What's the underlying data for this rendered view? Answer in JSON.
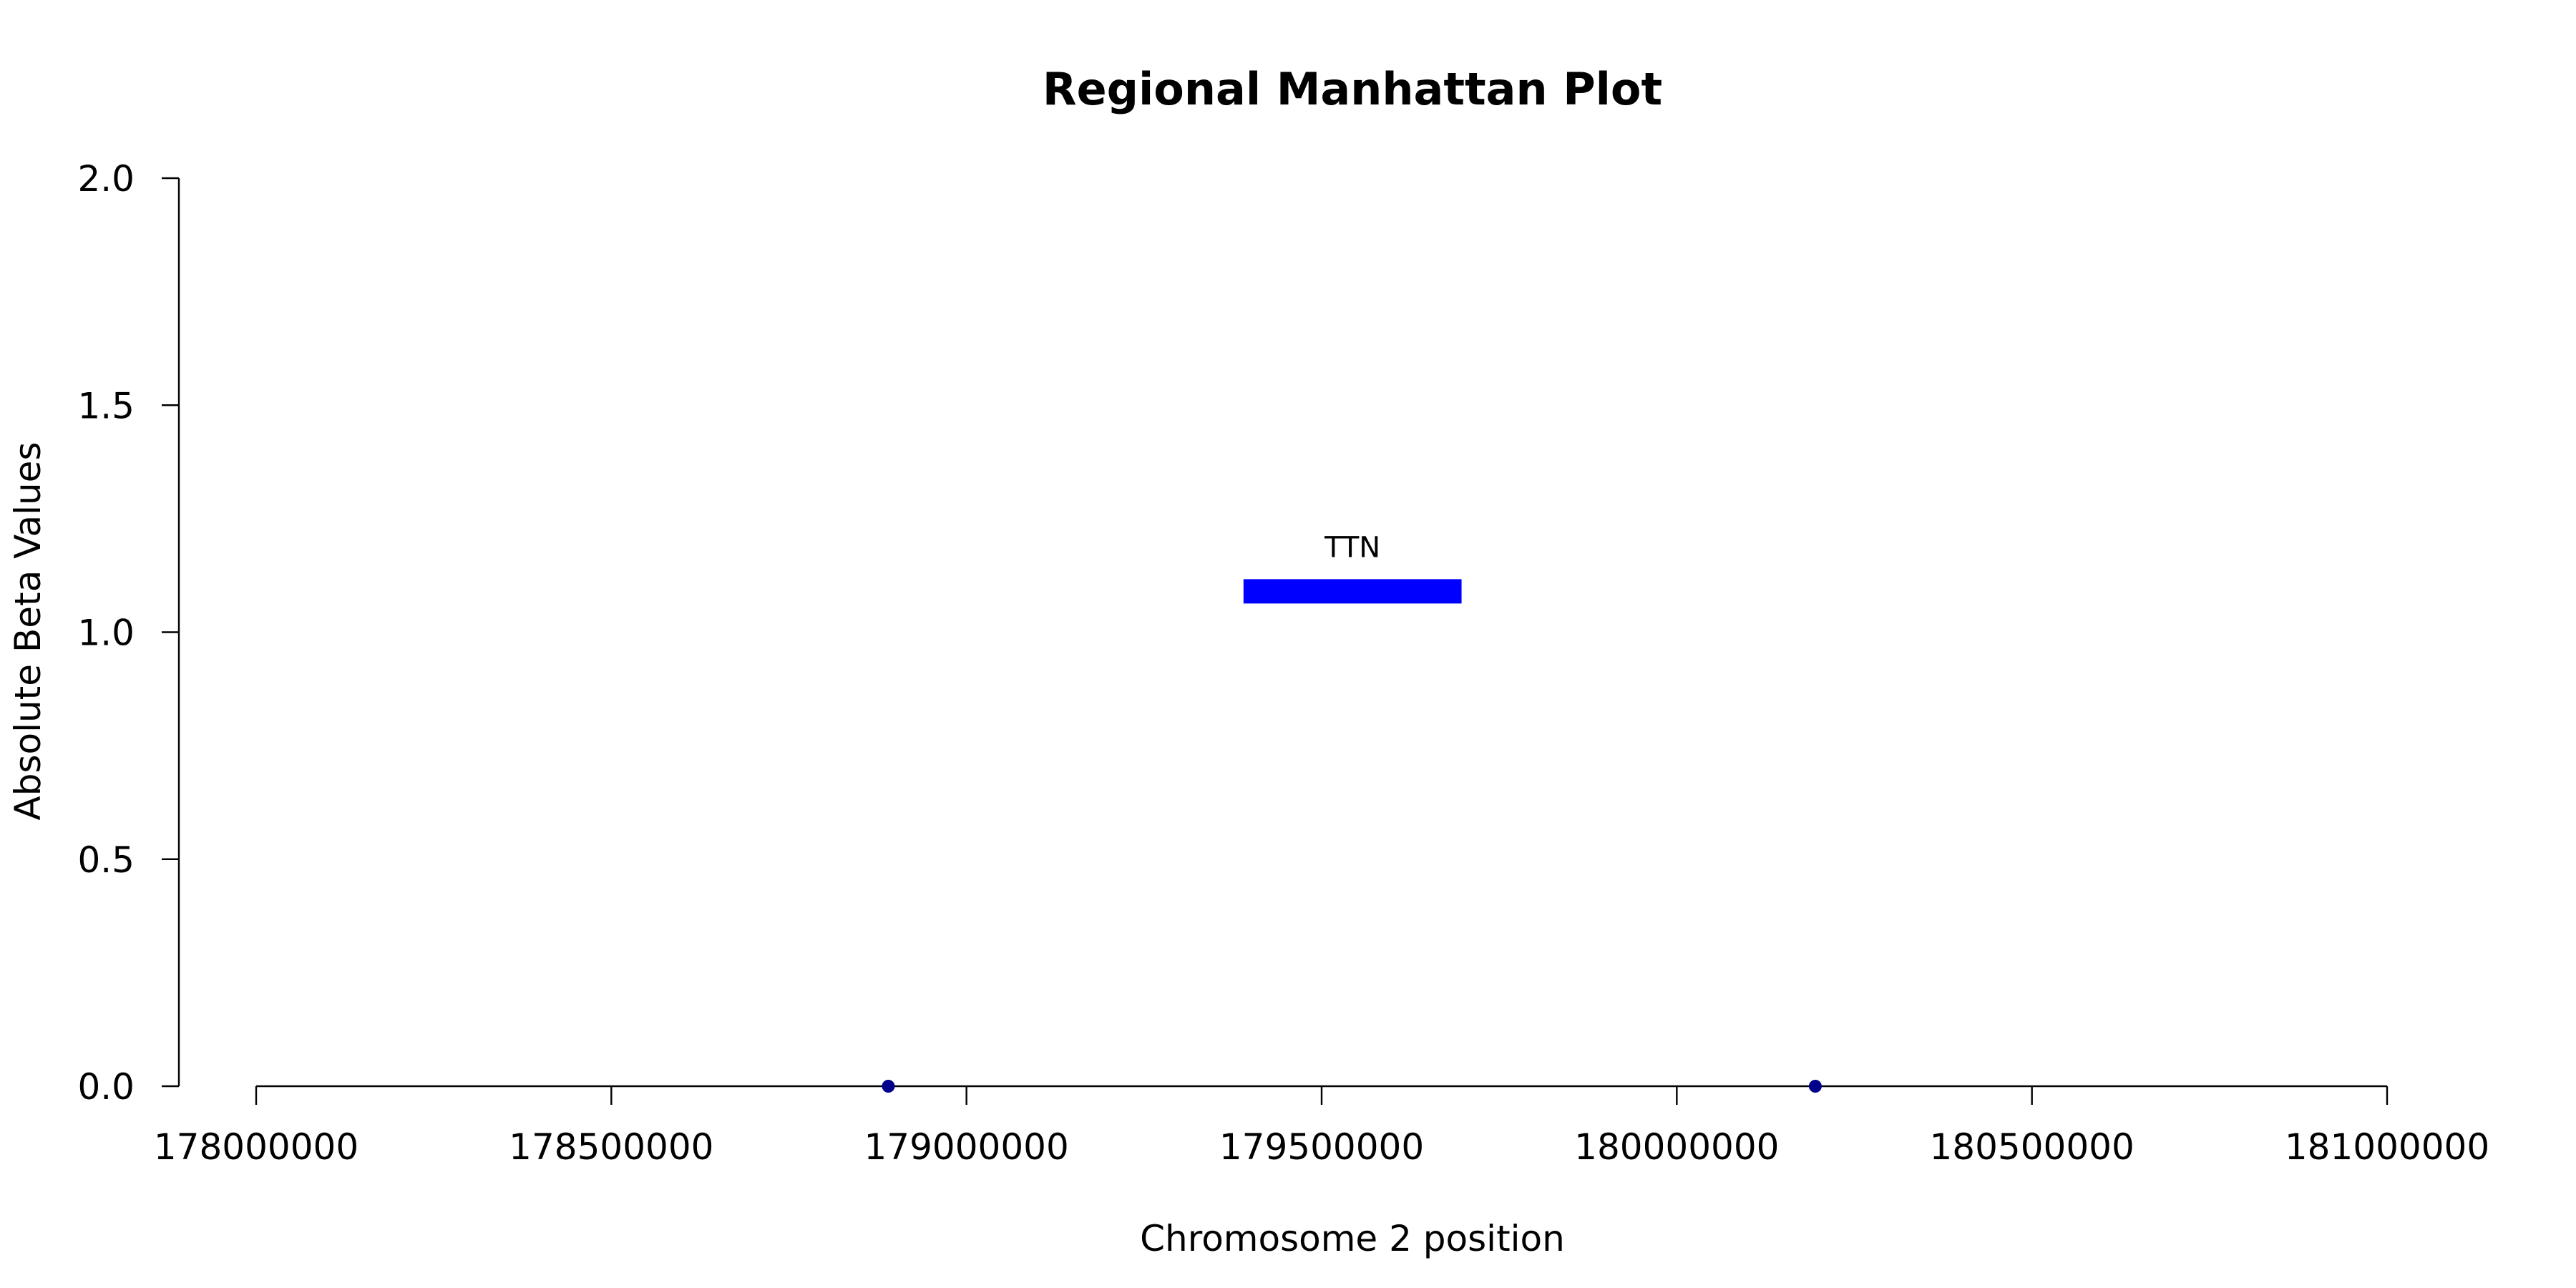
{
  "chart_data": {
    "type": "scatter",
    "title": "Regional Manhattan Plot",
    "xlabel": "Chromosome 2 position",
    "ylabel": "Absolute Beta Values",
    "xlim": [
      178000000,
      181000000
    ],
    "ylim": [
      0,
      2
    ],
    "x_ticks": [
      178000000,
      178500000,
      179000000,
      179500000,
      180000000,
      180500000,
      181000000
    ],
    "x_tick_labels": [
      "178000000",
      "178500000",
      "179000000",
      "179500000",
      "180000000",
      "180500000",
      "181000000"
    ],
    "y_ticks": [
      0,
      0.5,
      1,
      1.5,
      2
    ],
    "y_tick_labels": [
      "0.0",
      "0.5",
      "1.0",
      "1.5",
      "2.0"
    ],
    "grid": false,
    "series": [
      {
        "color": "#00008b",
        "points": [
          {
            "x": 178890000,
            "y": 0
          },
          {
            "x": 180195000,
            "y": 0
          }
        ]
      }
    ],
    "genes": [
      {
        "name": "TTN",
        "start": 179390000,
        "end": 179697000,
        "y": 1.09,
        "color": "#0000ff"
      }
    ]
  }
}
